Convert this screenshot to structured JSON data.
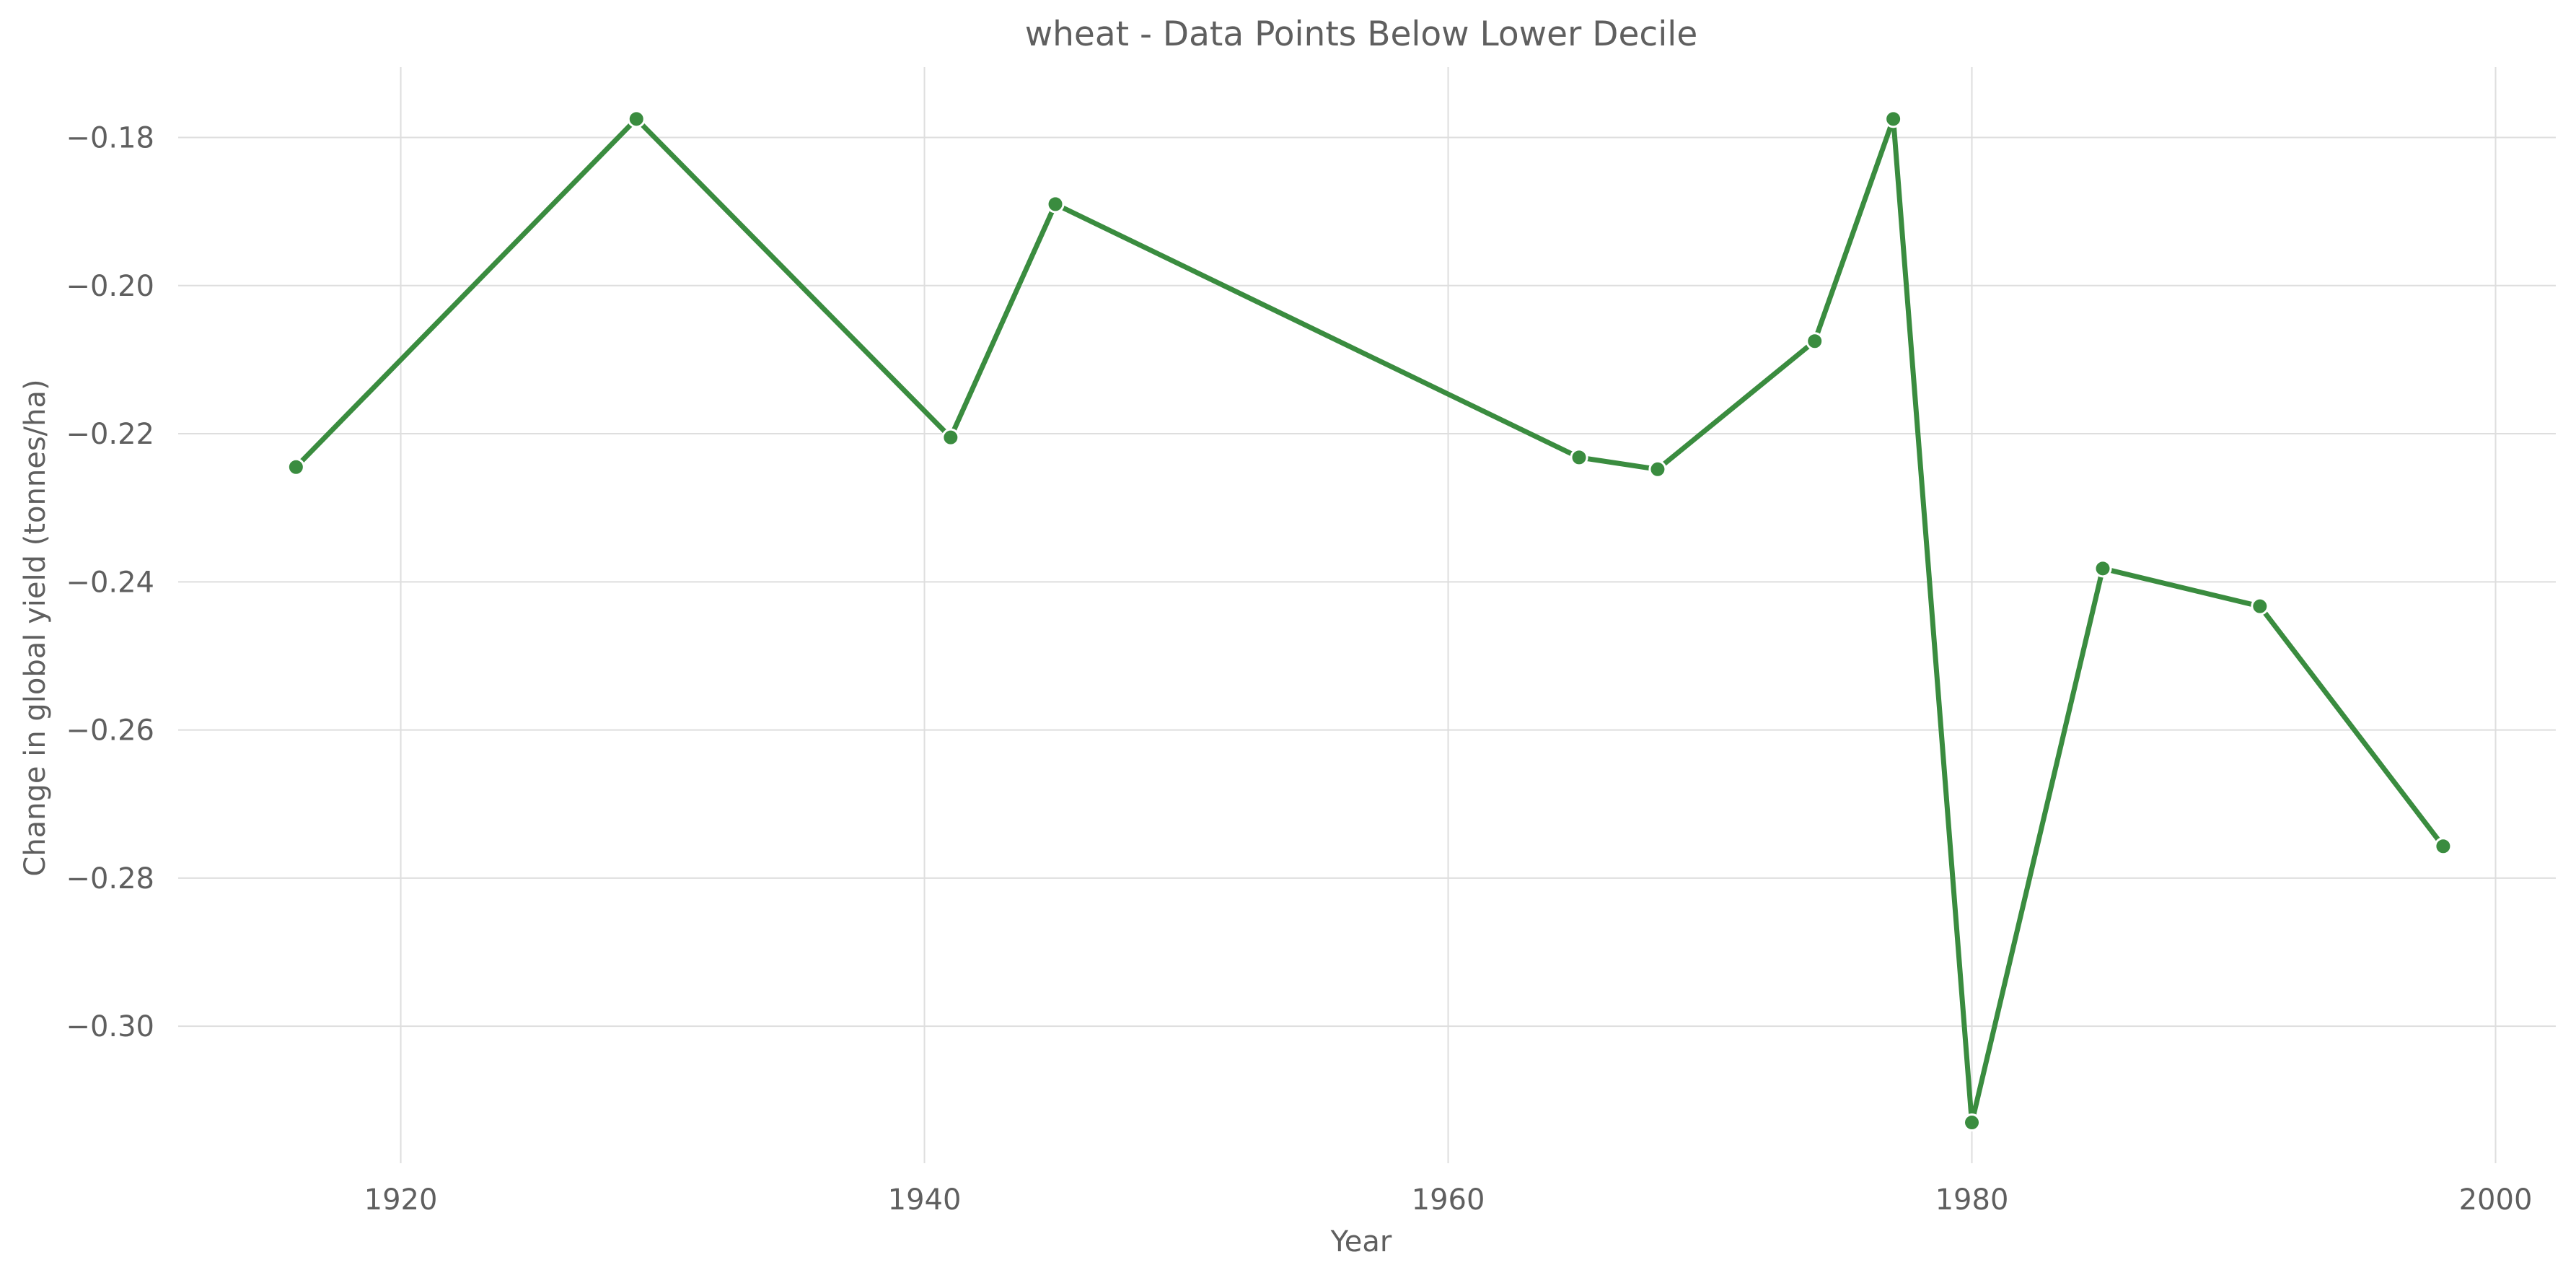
{
  "chart_data": {
    "type": "line",
    "title": "wheat - Data Points Below Lower Decile",
    "xlabel": "Year",
    "ylabel": "Change in global yield (tonnes/ha)",
    "xlim": [
      1911.5,
      2002.3
    ],
    "ylim": [
      -0.3185,
      -0.1705
    ],
    "x_ticks": [
      1920,
      1940,
      1960,
      1980,
      2000
    ],
    "y_ticks": [
      -0.18,
      -0.2,
      -0.22,
      -0.24,
      -0.26,
      -0.28,
      -0.3
    ],
    "x_tick_labels": [
      "1920",
      "1940",
      "1960",
      "1980",
      "2000"
    ],
    "y_tick_labels": [
      "−0.18",
      "−0.20",
      "−0.22",
      "−0.24",
      "−0.26",
      "−0.28",
      "−0.30"
    ],
    "grid": true,
    "series": [
      {
        "color": "#3a8c3f",
        "x": [
          1916,
          1929,
          1941,
          1945,
          1965,
          1968,
          1974,
          1977,
          1980,
          1985,
          1991,
          1998
        ],
        "y": [
          -0.2245,
          -0.1775,
          -0.2205,
          -0.189,
          -0.2232,
          -0.2248,
          -0.2075,
          -0.1775,
          -0.313,
          -0.2382,
          -0.2433,
          -0.2757
        ]
      }
    ]
  }
}
